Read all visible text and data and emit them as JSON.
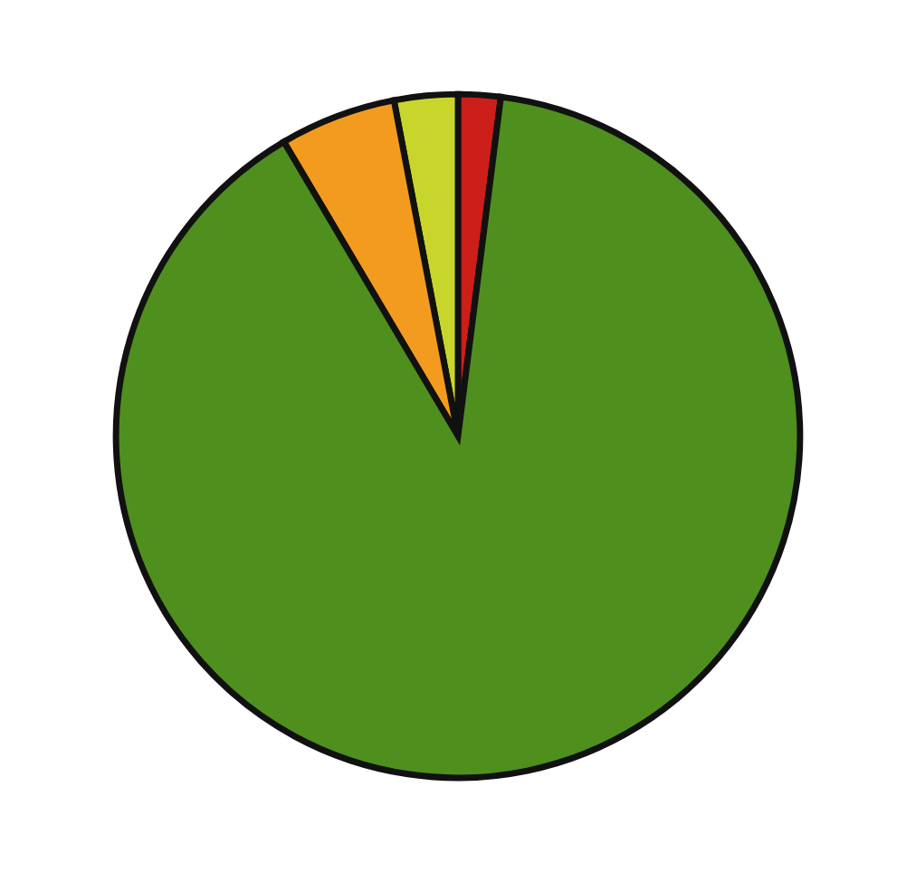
{
  "chart_data": {
    "type": "pie",
    "categories": [
      null,
      null,
      null,
      null
    ],
    "values": [
      2,
      3,
      5.5,
      89.5
    ],
    "colors": [
      "#cc1f1a",
      "#c8d62b",
      "#f39b1f",
      "#4f8f1e"
    ]
  }
}
